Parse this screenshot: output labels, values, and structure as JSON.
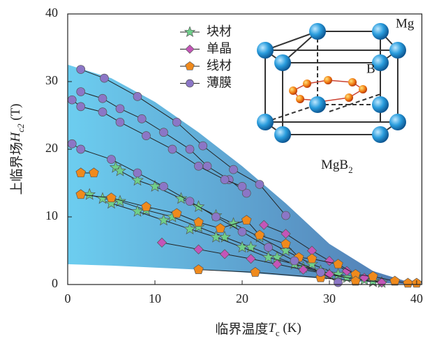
{
  "chart_data": {
    "type": "scatter",
    "xlabel": {
      "text": "临界温度",
      "symbol": "T",
      "sub": "c",
      "unit": " (K)"
    },
    "ylabel": {
      "text": "上临界场",
      "symbol": "H",
      "sub": "c2",
      "unit": " (T)"
    },
    "xlim": [
      0,
      40.6
    ],
    "ylim": [
      0,
      40
    ],
    "xticks": [
      0,
      10,
      20,
      30,
      40
    ],
    "yticks": [
      0,
      10,
      20,
      30,
      40
    ],
    "band": {
      "color": "#3d6aa8",
      "x": [
        0,
        5,
        10,
        15,
        20,
        25,
        30,
        35,
        40
      ],
      "upper": [
        32.5,
        30.5,
        27,
        22.5,
        17.5,
        12,
        6,
        2,
        0
      ],
      "lower": [
        3,
        2.8,
        2.5,
        2.2,
        1.8,
        1.3,
        0.8,
        0.3,
        0
      ]
    },
    "series": [
      {
        "name": "块材",
        "color": "#6fcf8a",
        "marker": "star",
        "curves": [
          {
            "x": [
              5.5,
              6,
              8,
              10,
              13,
              15,
              17,
              19,
              22,
              25,
              28,
              31,
              34,
              36
            ],
            "y": [
              17.3,
              16.8,
              15.4,
              14.5,
              12.7,
              11.5,
              10.2,
              9,
              7,
              5,
              3,
              1.5,
              0.7,
              0.3
            ]
          },
          {
            "x": [
              2.5,
              4,
              6,
              9,
              12,
              15,
              18,
              21,
              24,
              27,
              30,
              33,
              35
            ],
            "y": [
              13.3,
              12.7,
              12.3,
              11,
              10,
              8.5,
              7,
              5.5,
              4,
              2.5,
              1.5,
              0.8,
              0.4
            ]
          },
          {
            "x": [
              5,
              8,
              11,
              14,
              17,
              20,
              23,
              26,
              29,
              32,
              35
            ],
            "y": [
              12,
              10.8,
              9.5,
              8.2,
              7,
              5.5,
              4,
              3,
              2,
              1,
              0.5
            ]
          }
        ]
      },
      {
        "name": "单晶",
        "color": "#c455b8",
        "marker": "diamond",
        "curves": [
          {
            "x": [
              10.8,
              15,
              18,
              21,
              24,
              27,
              30,
              33,
              36
            ],
            "y": [
              6.2,
              5.2,
              4.5,
              3.8,
              3,
              2.2,
              1.5,
              0.8,
              0.3
            ]
          },
          {
            "x": [
              22.5,
              25,
              28,
              30,
              32,
              34,
              36
            ],
            "y": [
              8.8,
              7.5,
              5,
              3.5,
              2,
              1,
              0.3
            ]
          }
        ]
      },
      {
        "name": "线材",
        "color": "#f08a1c",
        "marker": "pentagon",
        "curves": [
          {
            "x": [
              1.5,
              3
            ],
            "y": [
              16.5,
              16.5
            ]
          },
          {
            "x": [
              1.5,
              5,
              9,
              12.5,
              15,
              17.5,
              20.5,
              22,
              25,
              26.5,
              28,
              31,
              33,
              35,
              37.5,
              39,
              40
            ],
            "y": [
              13.3,
              12.8,
              11.5,
              10.5,
              9.2,
              8.3,
              9.5,
              7.3,
              6,
              4,
              3.8,
              3,
              1.5,
              1.2,
              0.5,
              0.2,
              0.2
            ]
          },
          {
            "x": [
              15,
              21.5,
              29,
              33
            ],
            "y": [
              2.2,
              1.8,
              1,
              0.5
            ]
          }
        ]
      },
      {
        "name": "薄膜",
        "color": "#8b76c6",
        "marker": "circle",
        "curves": [
          {
            "x": [
              1.5,
              4.2,
              8,
              12.5,
              15.5,
              19,
              22,
              25
            ],
            "y": [
              31.8,
              30.5,
              27.8,
              24,
              20.5,
              17,
              14.8,
              10.2
            ]
          },
          {
            "x": [
              1.5,
              4,
              6,
              8.5,
              11,
              14,
              16,
              18.5,
              20.5
            ],
            "y": [
              28.5,
              27.5,
              26,
              24.5,
              22.5,
              20,
              17.5,
              15.5,
              13.5
            ]
          },
          {
            "x": [
              0.5,
              1.5,
              4,
              6,
              9,
              12,
              15,
              18,
              20
            ],
            "y": [
              27.3,
              26.3,
              25.5,
              24,
              22,
              20,
              17.5,
              15.5,
              14.5
            ]
          },
          {
            "x": [
              0.5,
              1.5,
              5,
              8,
              11,
              14,
              17,
              20,
              23,
              26,
              29,
              31
            ],
            "y": [
              20.8,
              20,
              18.5,
              16.5,
              14.5,
              12.3,
              10,
              7.8,
              5.5,
              3.5,
              1.8,
              0.3
            ]
          }
        ]
      }
    ],
    "inset": {
      "mg": "Mg",
      "b": "B",
      "formula": "MgB",
      "formula_sub": "2"
    }
  }
}
